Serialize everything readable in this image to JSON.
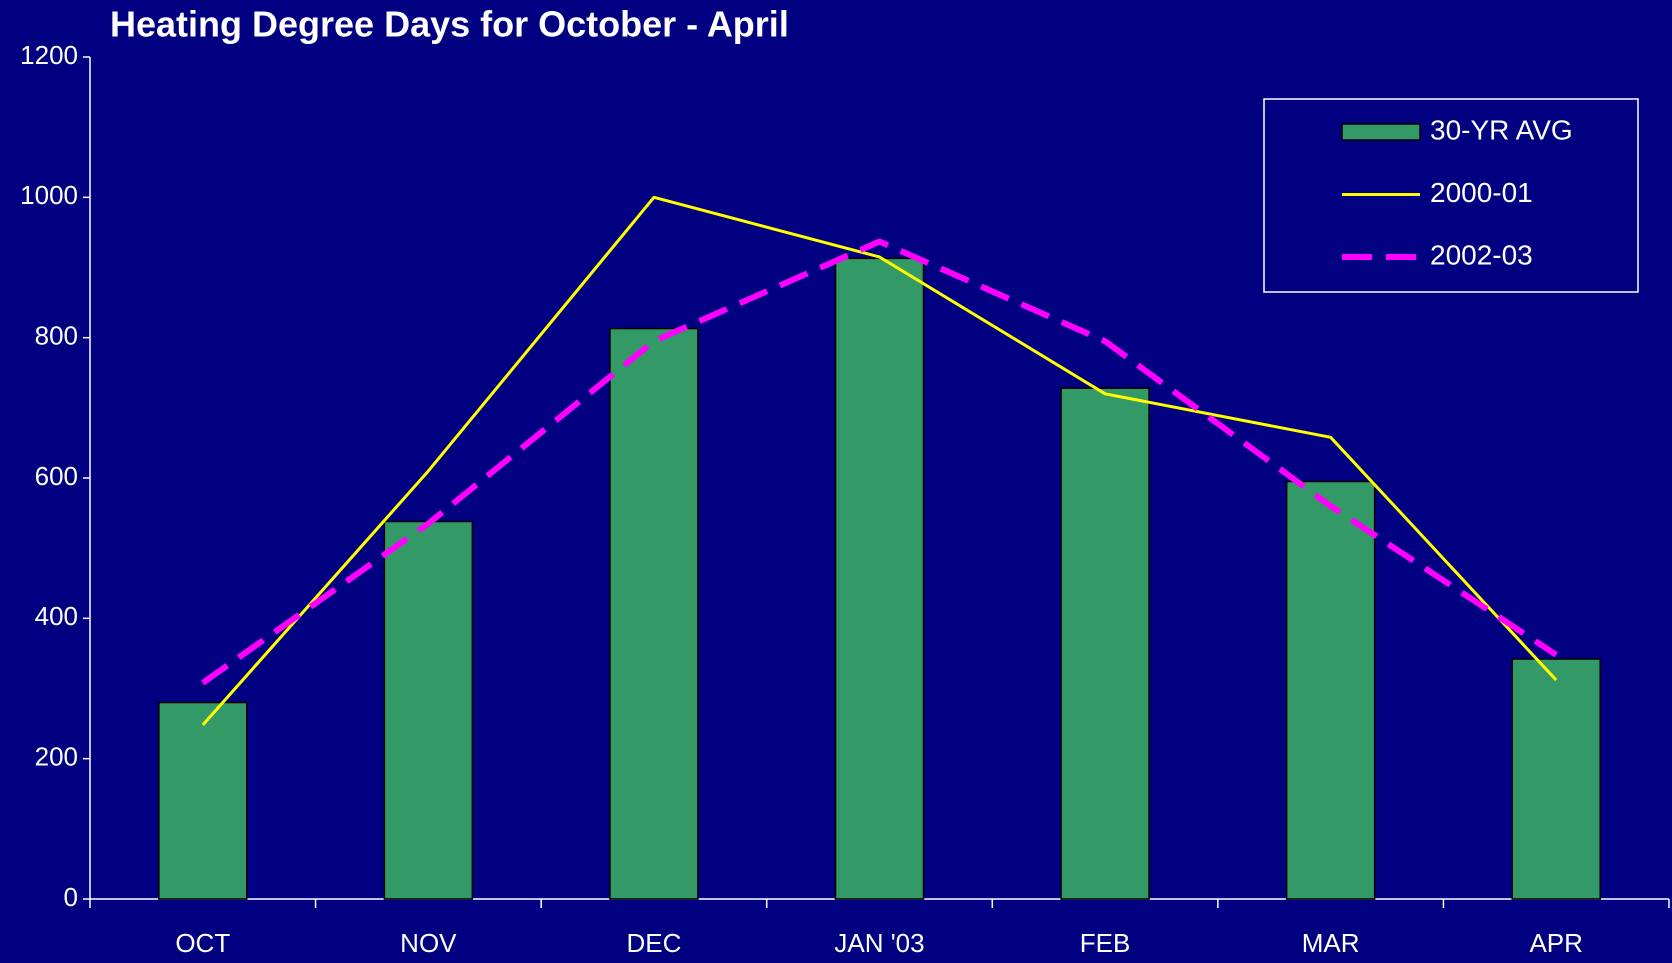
{
  "chart_data": {
    "type": "bar",
    "title": "Heating Degree Days for  October - April",
    "categories": [
      "OCT",
      "NOV",
      "DEC",
      "JAN '03",
      "FEB",
      "MAR",
      "APR"
    ],
    "series": [
      {
        "name": "30-YR AVG",
        "type": "bar",
        "color": "#339966",
        "values": [
          280,
          538,
          813,
          913,
          728,
          595,
          342
        ]
      },
      {
        "name": "2000-01",
        "type": "line",
        "color": "#ffff00",
        "dashed": false,
        "values": [
          248,
          610,
          1000,
          915,
          720,
          658,
          312
        ]
      },
      {
        "name": "2002-03",
        "type": "line",
        "color": "#ff00ff",
        "dashed": true,
        "values": [
          308,
          535,
          795,
          937,
          795,
          560,
          348
        ]
      }
    ],
    "ylim": [
      0,
      1200
    ],
    "yticks": [
      0,
      200,
      400,
      600,
      800,
      1000,
      1200
    ],
    "grid": false,
    "legend": "top-right"
  }
}
